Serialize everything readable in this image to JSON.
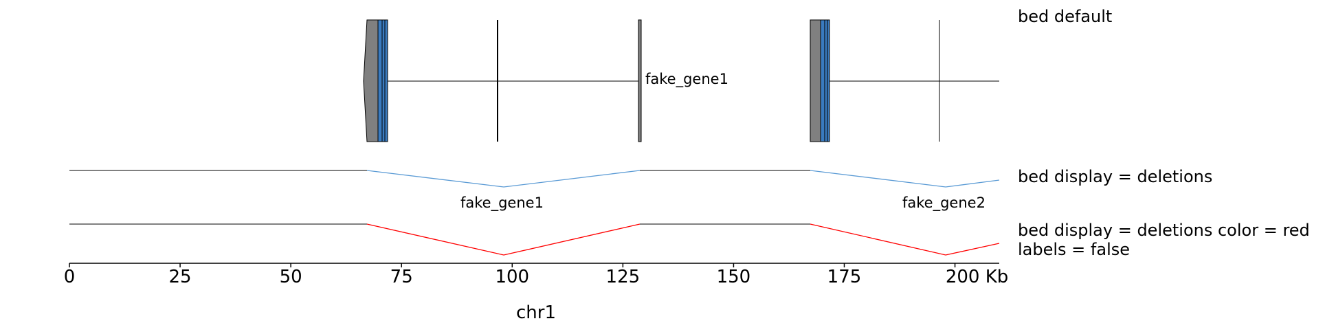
{
  "tracks": [
    {
      "label": "bed default"
    },
    {
      "label": "bed display = deletions"
    },
    {
      "label": "bed display = deletions color = red\nlabels = false"
    }
  ],
  "genes": [
    {
      "name": "fake_gene1",
      "start_kb": 67,
      "end_kb": 128.5
    },
    {
      "name": "fake_gene2",
      "start_kb": 167,
      "end_kb": 210
    }
  ],
  "axis": {
    "min_kb": 0,
    "max_kb": 210,
    "ticks": [
      "0",
      "25",
      "50",
      "75",
      "100",
      "125",
      "150",
      "175",
      "200 Kb"
    ],
    "tick_values": [
      0,
      25,
      50,
      75,
      100,
      125,
      150,
      175,
      200
    ],
    "chrom": "chr1"
  },
  "colors": {
    "exon_blue": "#3a7bbf",
    "utr_gray": "#808080",
    "deletion_blue": "#5b9bd5",
    "deletion_red": "#ff0000",
    "line": "#000000"
  }
}
